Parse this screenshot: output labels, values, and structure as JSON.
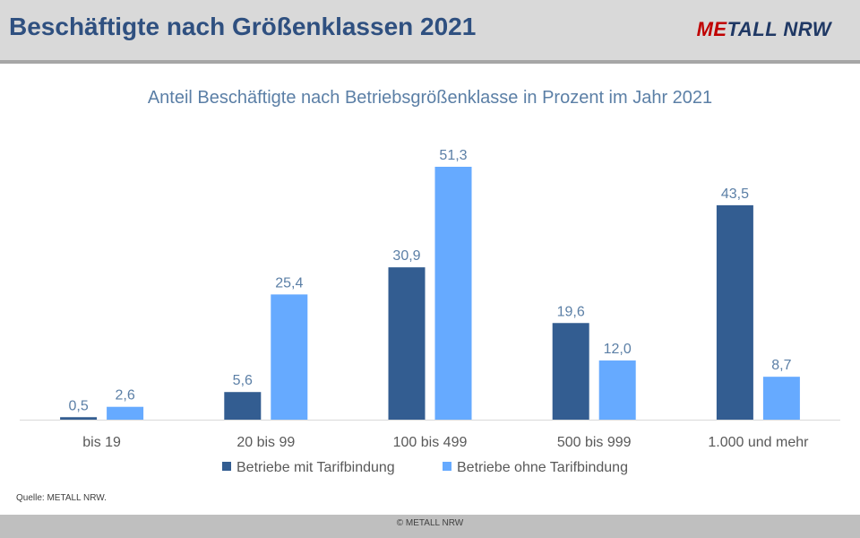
{
  "header": {
    "title": "Beschäftigte nach Größenklassen 2021",
    "logo_prefix": "ME",
    "logo_rest": "TALL NRW"
  },
  "chart_data": {
    "type": "bar",
    "title": "Anteil Beschäftigte nach Betriebsgrößenklasse in Prozent im Jahr 2021",
    "categories": [
      "bis 19",
      "20 bis 99",
      "100 bis 499",
      "500 bis 999",
      "1.000 und mehr"
    ],
    "series": [
      {
        "name": "Betriebe mit Tarifbindung",
        "values": [
          0.5,
          5.6,
          30.9,
          19.6,
          43.5
        ],
        "labels": [
          "0,5",
          "5,6",
          "30,9",
          "19,6",
          "43,5"
        ],
        "color": "#335d91"
      },
      {
        "name": "Betriebe ohne Tarifbindung",
        "values": [
          2.6,
          25.4,
          51.3,
          12.0,
          8.7
        ],
        "labels": [
          "2,6",
          "25,4",
          "51,3",
          "12,0",
          "8,7"
        ],
        "color": "#66aaff"
      }
    ],
    "xlabel": "",
    "ylabel": "",
    "ylim": [
      0,
      51.3
    ],
    "grid": false,
    "legend_placement": "bottom",
    "colors": {
      "title": "#5b7fa6",
      "labels": "#5b7fa6",
      "ticks": "#595959",
      "axis": "#d9d9d9"
    }
  },
  "source": "Quelle: METALL NRW.",
  "footer": {
    "copyright": "© METALL NRW"
  }
}
